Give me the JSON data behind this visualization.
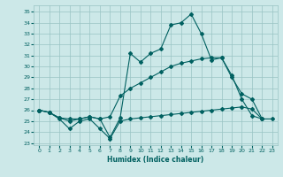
{
  "xlabel": "Humidex (Indice chaleur)",
  "bg_color": "#cce8e8",
  "grid_color": "#99c4c4",
  "line_color": "#006060",
  "xlim": [
    -0.5,
    23.5
  ],
  "ylim": [
    22.8,
    35.6
  ],
  "yticks": [
    23,
    24,
    25,
    26,
    27,
    28,
    29,
    30,
    31,
    32,
    33,
    34,
    35
  ],
  "xticks": [
    0,
    1,
    2,
    3,
    4,
    5,
    6,
    7,
    8,
    9,
    10,
    11,
    12,
    13,
    14,
    15,
    16,
    17,
    18,
    19,
    20,
    21,
    22,
    23
  ],
  "s1_x": [
    0,
    1,
    2,
    3,
    4,
    5,
    6,
    7,
    8,
    9,
    10,
    11,
    12,
    13,
    14,
    15,
    16,
    17,
    18,
    19,
    20,
    21,
    22,
    23
  ],
  "s1_y": [
    26.0,
    25.8,
    25.2,
    24.3,
    25.0,
    25.2,
    24.3,
    23.4,
    25.0,
    25.2,
    25.3,
    25.4,
    25.5,
    25.6,
    25.7,
    25.8,
    25.9,
    26.0,
    26.1,
    26.2,
    26.3,
    26.1,
    25.2,
    25.2
  ],
  "s2_x": [
    0,
    1,
    2,
    3,
    4,
    5,
    6,
    7,
    8,
    9,
    10,
    11,
    12,
    13,
    14,
    15,
    16,
    17,
    18,
    19,
    20,
    21,
    22,
    23
  ],
  "s2_y": [
    26.0,
    25.8,
    25.3,
    25.2,
    25.2,
    25.4,
    25.2,
    25.4,
    27.3,
    28.0,
    28.5,
    29.0,
    29.5,
    30.0,
    30.3,
    30.5,
    30.7,
    30.8,
    30.8,
    29.2,
    27.0,
    25.5,
    25.2,
    null
  ],
  "s3_x": [
    0,
    1,
    2,
    3,
    4,
    5,
    6,
    7,
    8,
    9,
    10,
    11,
    12,
    13,
    14,
    15,
    16,
    17,
    18,
    19,
    20,
    21,
    22,
    23
  ],
  "s3_y": [
    26.0,
    25.8,
    25.3,
    25.0,
    25.2,
    25.4,
    25.2,
    23.5,
    25.3,
    31.2,
    30.4,
    31.2,
    31.6,
    33.8,
    34.0,
    34.8,
    33.0,
    30.6,
    30.8,
    29.0,
    27.5,
    27.0,
    25.2,
    null
  ]
}
